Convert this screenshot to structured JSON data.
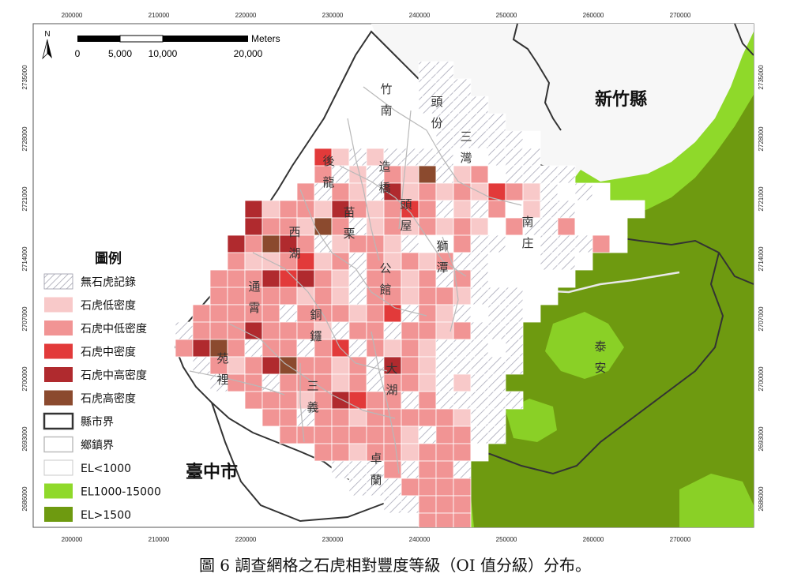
{
  "caption": "圖 6 調查網格之石虎相對豐度等級（OI 值分級）分布。",
  "scale_bar": {
    "unit": "Meters",
    "labels": [
      "0",
      "5,000",
      "10,000",
      "20,000"
    ]
  },
  "north_label": "N",
  "ticks": {
    "x": [
      "200000",
      "210000",
      "220000",
      "230000",
      "240000",
      "250000",
      "260000",
      "270000"
    ],
    "y": [
      "2735000",
      "2728000",
      "2721000",
      "2714000",
      "2707000",
      "2700000",
      "2693000",
      "2686000"
    ]
  },
  "counties": {
    "hsinchu": "新竹縣",
    "taichung": "臺中市"
  },
  "places": {
    "zhunan": "竹\n南",
    "toufen": "頭\n份",
    "sanwan": "三\n灣",
    "houlong": "後\n龍",
    "zaoqiao": "造\n橋",
    "touwu": "頭\n屋",
    "miaoli": "苗\n栗",
    "xihu": "西\n湖",
    "shitan": "獅\n潭",
    "nanzhuang": "南\n庄",
    "gongguan": "公\n館",
    "tongxiao": "通\n霄",
    "tongluo": "銅\n鑼",
    "dahu": "大\n湖",
    "taian": "泰\n安",
    "yuanli": "苑\n裡",
    "sanyi": "三\n義",
    "zhuolan": "卓\n蘭"
  },
  "legend": {
    "title": "圖例",
    "items": [
      {
        "label": "無石虎記錄",
        "swatch": "hatch"
      },
      {
        "label": "石虎低密度",
        "swatch": "#f8c9c9"
      },
      {
        "label": "石虎中低密度",
        "swatch": "#f19494"
      },
      {
        "label": "石虎中密度",
        "swatch": "#e23a3a"
      },
      {
        "label": "石虎中高密度",
        "swatch": "#b02a2e"
      },
      {
        "label": "石虎高密度",
        "swatch": "#8b4a2e"
      },
      {
        "label": "縣市界",
        "swatch": "county-line"
      },
      {
        "label": "鄉鎮界",
        "swatch": "town-line"
      },
      {
        "label": "EL<1000",
        "swatch": "#ffffff"
      },
      {
        "label": "EL1000-15000",
        "swatch": "#8fd92a"
      },
      {
        "label": "EL>1500",
        "swatch": "#6e9a10"
      }
    ]
  },
  "colors": {
    "none": "hatch",
    "low": "#f8c9c9",
    "midlow": "#f19494",
    "mid": "#e23a3a",
    "midhigh": "#b02a2e",
    "high": "#8b4a2e",
    "el_mid": "#8fd92a",
    "el_high": "#6e9a10",
    "county_line": "#333333",
    "town_line": "#b8b8b8"
  }
}
